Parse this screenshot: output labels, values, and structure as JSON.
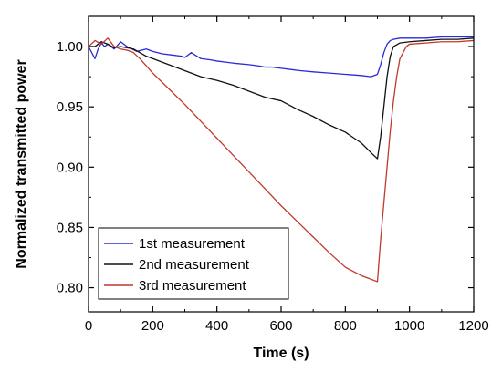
{
  "chart_data": {
    "type": "line",
    "xlabel": "Time (s)",
    "ylabel": "Normalized transmitted power",
    "xlim": [
      0,
      1200
    ],
    "ylim": [
      0.78,
      1.025
    ],
    "xticks": [
      0,
      200,
      400,
      600,
      800,
      1000,
      1200
    ],
    "yticks": [
      0.8,
      0.85,
      0.9,
      0.95,
      1.0
    ],
    "ytick_labels": [
      "0.80",
      "0.85",
      "0.90",
      "0.95",
      "1.00"
    ],
    "grid": false,
    "legend_position": "bottom-left",
    "series": [
      {
        "name": "1st measurement",
        "color": "#2a2ad8",
        "x": [
          0,
          10,
          20,
          30,
          40,
          50,
          60,
          80,
          100,
          120,
          150,
          180,
          200,
          230,
          260,
          290,
          300,
          320,
          350,
          380,
          400,
          430,
          460,
          500,
          530,
          550,
          570,
          600,
          630,
          660,
          700,
          750,
          800,
          850,
          880,
          900,
          910,
          920,
          930,
          940,
          950,
          970,
          1000,
          1050,
          1100,
          1150,
          1200
        ],
        "y": [
          1.0,
          0.995,
          0.99,
          0.998,
          1.003,
          1.0,
          1.002,
          0.998,
          1.004,
          1.0,
          0.996,
          0.998,
          0.996,
          0.994,
          0.993,
          0.992,
          0.991,
          0.995,
          0.99,
          0.989,
          0.988,
          0.987,
          0.986,
          0.985,
          0.984,
          0.983,
          0.983,
          0.982,
          0.981,
          0.98,
          0.979,
          0.978,
          0.977,
          0.976,
          0.975,
          0.977,
          0.985,
          0.995,
          1.002,
          1.005,
          1.006,
          1.007,
          1.007,
          1.007,
          1.008,
          1.008,
          1.008
        ]
      },
      {
        "name": "2nd measurement",
        "color": "#111111",
        "x": [
          0,
          20,
          40,
          60,
          80,
          100,
          120,
          140,
          160,
          180,
          200,
          250,
          300,
          350,
          400,
          450,
          500,
          550,
          600,
          650,
          700,
          750,
          800,
          850,
          880,
          900,
          910,
          920,
          930,
          940,
          950,
          970,
          1000,
          1050,
          1100,
          1150,
          1200
        ],
        "y": [
          1.0,
          1.0,
          1.004,
          1.002,
          0.999,
          1.0,
          0.999,
          0.998,
          0.995,
          0.992,
          0.99,
          0.985,
          0.98,
          0.975,
          0.972,
          0.968,
          0.963,
          0.958,
          0.955,
          0.948,
          0.942,
          0.935,
          0.929,
          0.92,
          0.912,
          0.907,
          0.925,
          0.95,
          0.975,
          0.992,
          1.0,
          1.003,
          1.004,
          1.005,
          1.006,
          1.006,
          1.007
        ]
      },
      {
        "name": "3rd measurement",
        "color": "#c0392b",
        "x": [
          0,
          20,
          40,
          60,
          80,
          100,
          120,
          140,
          160,
          180,
          200,
          250,
          300,
          350,
          400,
          450,
          500,
          550,
          600,
          650,
          700,
          750,
          800,
          850,
          880,
          900,
          910,
          920,
          930,
          940,
          950,
          960,
          970,
          990,
          1000,
          1050,
          1100,
          1150,
          1200
        ],
        "y": [
          1.0,
          1.005,
          1.002,
          1.007,
          1.0,
          0.998,
          0.997,
          0.995,
          0.99,
          0.984,
          0.978,
          0.965,
          0.952,
          0.938,
          0.924,
          0.91,
          0.896,
          0.882,
          0.868,
          0.855,
          0.842,
          0.829,
          0.817,
          0.81,
          0.807,
          0.805,
          0.84,
          0.87,
          0.9,
          0.93,
          0.955,
          0.975,
          0.99,
          1.0,
          1.002,
          1.003,
          1.004,
          1.004,
          1.005
        ]
      }
    ]
  }
}
